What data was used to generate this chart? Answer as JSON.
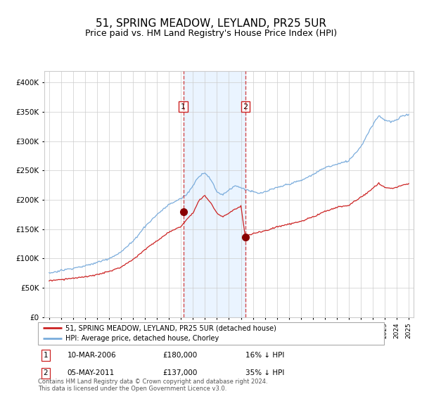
{
  "title": "51, SPRING MEADOW, LEYLAND, PR25 5UR",
  "subtitle": "Price paid vs. HM Land Registry's House Price Index (HPI)",
  "title_fontsize": 11,
  "subtitle_fontsize": 9,
  "hpi_color": "#7aacdc",
  "price_color": "#cc2222",
  "sale1_date_label": "10-MAR-2006",
  "sale1_price": 180000,
  "sale1_pct": "16%",
  "sale1_year": 2006.19,
  "sale2_date_label": "05-MAY-2011",
  "sale2_price": 137000,
  "sale2_pct": "35%",
  "sale2_year": 2011.37,
  "legend_line1": "51, SPRING MEADOW, LEYLAND, PR25 5UR (detached house)",
  "legend_line2": "HPI: Average price, detached house, Chorley",
  "footnote": "Contains HM Land Registry data © Crown copyright and database right 2024.\nThis data is licensed under the Open Government Licence v3.0.",
  "ylim": [
    0,
    420000
  ],
  "yticks": [
    0,
    50000,
    100000,
    150000,
    200000,
    250000,
    300000,
    350000,
    400000
  ],
  "xlim_start": 1994.6,
  "xlim_end": 2025.4,
  "background_color": "#ffffff",
  "grid_color": "#cccccc",
  "shade_color": "#ddeeff"
}
